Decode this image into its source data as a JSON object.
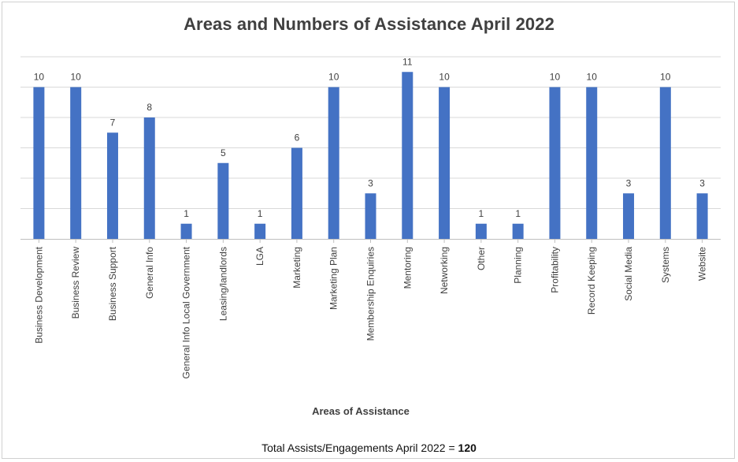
{
  "colors": {
    "bar": "#4472c4",
    "grid": "#d9d9d9",
    "text": "#404040",
    "axis": "#bfbfbf"
  },
  "chart_data": {
    "type": "bar",
    "title": "Areas and Numbers of Assistance April 2022",
    "xlabel": "Areas of Assistance",
    "ylabel": "",
    "ylim": [
      0,
      12
    ],
    "grid": true,
    "legend": "none",
    "categories": [
      "Business Development",
      "Business Review",
      "Business Support",
      "General Info",
      "General Info Local Government",
      "Leasing/landlords",
      "LGA",
      "Marketing",
      "Marketing Plan",
      "Membership Enquiries",
      "Mentoring",
      "Networking",
      "Other",
      "Planning",
      "Profitability",
      "Record Keeping",
      "Social Media",
      "Systems",
      "Website"
    ],
    "values": [
      10,
      10,
      7,
      8,
      1,
      5,
      1,
      6,
      10,
      3,
      11,
      10,
      1,
      1,
      10,
      10,
      3,
      10,
      3
    ],
    "data_labels": [
      "10",
      "10",
      "7",
      "8",
      "1",
      "5",
      "1",
      "6",
      "10",
      "3",
      "11",
      "10",
      "1",
      "1",
      "10",
      "10",
      "3",
      "10",
      "3"
    ]
  },
  "footer": {
    "text": "Total Assists/Engagements April 2022 = ",
    "total": "120"
  }
}
